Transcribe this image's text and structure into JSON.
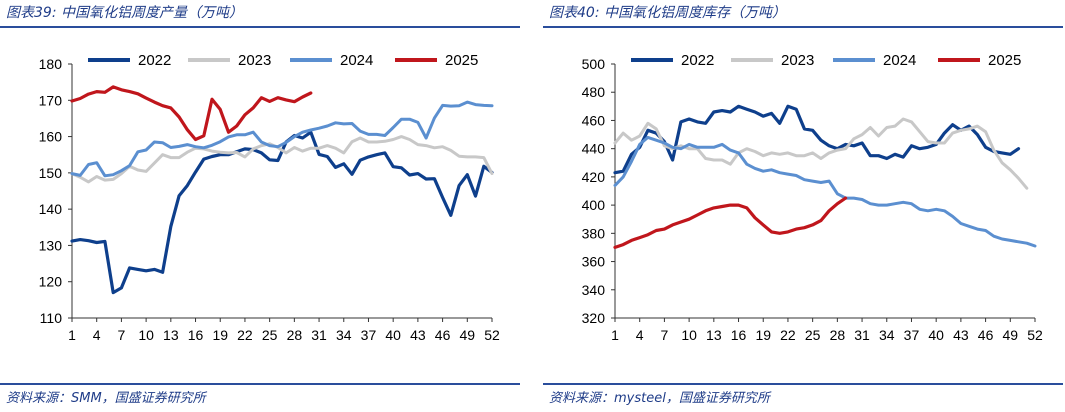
{
  "charts": [
    {
      "title": "图表39:  中国氧化铝周度产量（万吨）",
      "source": "资料来源：SMM，国盛证券研究所",
      "chart_data": {
        "type": "line",
        "title": "中国氧化铝周度产量（万吨）",
        "xlabel": "",
        "ylabel": "",
        "x_range": [
          1,
          52
        ],
        "ylim": [
          110,
          180
        ],
        "yticks": [
          110,
          120,
          130,
          140,
          150,
          160,
          170,
          180
        ],
        "xticks": [
          1,
          4,
          7,
          10,
          13,
          16,
          19,
          22,
          25,
          28,
          31,
          34,
          37,
          40,
          43,
          46,
          49,
          52
        ],
        "legend": "top",
        "series": [
          {
            "name": "2022",
            "color": "#0e3f8c",
            "values": [
              131.2,
              131.6,
              131.3,
              130.8,
              131.1,
              117,
              118.3,
              123.8,
              123.4,
              123,
              123.4,
              122.6,
              135.2,
              143.7,
              146.5,
              150.2,
              153.8,
              154.5,
              155,
              155,
              155.8,
              156.6,
              156.4,
              155.5,
              153.6,
              153.4,
              158.5,
              160.3,
              159.6,
              161.2,
              155.1,
              154.5,
              151.5,
              152.5,
              149.6,
              153.5,
              154.4,
              155,
              155.5,
              151.7,
              151.4,
              149.4,
              149.8,
              148.3,
              148.4,
              143.2,
              138.3,
              146.5,
              149.5,
              143.6,
              151.8,
              150.1
            ]
          },
          {
            "name": "2023",
            "color": "#c8c8c8",
            "values": [
              149.8,
              148.8,
              147.5,
              149,
              148,
              148.2,
              149.8,
              151.8,
              150.8,
              150.4,
              152.7,
              155,
              154.2,
              154.2,
              155.7,
              156.8,
              156.6,
              156,
              155.7,
              155.5,
              155.6,
              154.4,
              156.6,
              157.5,
              158,
              157,
              155.5,
              157,
              156,
              156.8,
              156.8,
              157.5,
              156.8,
              155.5,
              158.6,
              159.6,
              158.5,
              158.5,
              158.7,
              159.2,
              160,
              159.2,
              157.8,
              157.5,
              156.9,
              157.2,
              156.2,
              154.6,
              154.4,
              154.4,
              154.2,
              149.8
            ]
          },
          {
            "name": "2024",
            "color": "#5b8fd0",
            "values": [
              149.8,
              149.3,
              152.3,
              152.8,
              149.2,
              149.5,
              150.6,
              152,
              155.8,
              156.3,
              158.5,
              158.3,
              157,
              157.3,
              157.8,
              157.2,
              156.9,
              157.6,
              158.6,
              159.9,
              160.5,
              160.5,
              161.2,
              158.5,
              157.5,
              157.2,
              158.4,
              160,
              161.2,
              161.8,
              162.3,
              162.9,
              163.8,
              163.5,
              163.6,
              161.5,
              160.6,
              160.6,
              160.3,
              162.5,
              164.8,
              164.8,
              163.9,
              159.6,
              165.1,
              168.6,
              168.4,
              168.5,
              169.5,
              168.8,
              168.6,
              168.5
            ]
          },
          {
            "name": "2025",
            "color": "#c0161c",
            "values": [
              169.8,
              170.5,
              171.7,
              172.4,
              172.2,
              173.7,
              172.9,
              172.4,
              171.8,
              170.6,
              169.5,
              168.5,
              167.9,
              165.4,
              161.9,
              159.2,
              160.2,
              170.3,
              167.5,
              161.2,
              162.9,
              166,
              167.9,
              170.7,
              169.7,
              170.7,
              170.1,
              169.6,
              170.9,
              172
            ]
          }
        ]
      }
    },
    {
      "title": "图表40:  中国氧化铝周度库存（万吨）",
      "source": "资料来源：mysteel，国盛证券研究所",
      "chart_data": {
        "type": "line",
        "title": "中国氧化铝周度库存（万吨）",
        "xlabel": "",
        "ylabel": "",
        "x_range": [
          1,
          52
        ],
        "ylim": [
          320,
          500
        ],
        "yticks": [
          320,
          340,
          360,
          380,
          400,
          420,
          440,
          460,
          480,
          500
        ],
        "xticks": [
          1,
          4,
          7,
          10,
          13,
          16,
          19,
          22,
          25,
          28,
          31,
          34,
          37,
          40,
          43,
          46,
          49,
          52
        ],
        "legend": "top",
        "series": [
          {
            "name": "2022",
            "color": "#0e3f8c",
            "values": [
              423,
              424,
              436,
              441,
              453,
              451,
              445,
              432,
              459,
              461,
              459,
              458,
              466,
              467,
              466,
              470,
              468,
              466,
              463,
              465,
              458,
              470,
              468,
              454,
              453,
              446,
              442,
              440,
              443,
              442,
              444,
              435,
              435,
              433,
              436,
              434,
              442,
              440,
              441,
              443,
              451,
              457,
              453,
              456,
              450,
              441,
              438,
              437,
              436,
              440
            ]
          },
          {
            "name": "2023",
            "color": "#c8c8c8",
            "values": [
              444,
              451,
              446,
              449,
              458,
              454,
              442,
              440,
              442,
              440,
              440,
              433,
              432,
              432,
              429,
              437,
              440,
              438,
              435,
              437,
              436,
              437,
              435,
              435,
              437,
              433,
              437,
              439,
              440,
              447,
              450,
              455,
              449,
              455,
              456,
              461,
              459,
              452,
              445,
              444,
              444,
              451,
              453,
              454,
              456,
              452,
              439,
              430,
              425,
              419,
              412
            ]
          },
          {
            "name": "2024",
            "color": "#5b8fd0",
            "values": [
              414,
              420,
              431,
              443,
              448,
              446,
              444,
              441,
              440,
              443,
              441,
              441,
              441,
              443,
              439,
              437,
              429,
              426,
              424,
              425,
              423,
              422,
              421,
              418,
              417,
              416,
              417,
              408,
              405,
              405,
              404,
              401,
              400,
              400,
              401,
              402,
              401,
              397,
              396,
              397,
              396,
              392,
              387,
              385,
              383,
              382,
              378,
              376,
              375,
              374,
              373,
              371
            ]
          },
          {
            "name": "2025",
            "color": "#c0161c",
            "values": [
              370,
              372,
              375,
              377,
              379,
              382,
              383,
              386,
              388,
              390,
              393,
              396,
              398,
              399,
              400,
              400,
              398,
              391,
              386,
              381,
              380,
              381,
              383,
              384,
              386,
              389,
              396,
              401,
              405
            ]
          }
        ]
      }
    }
  ]
}
